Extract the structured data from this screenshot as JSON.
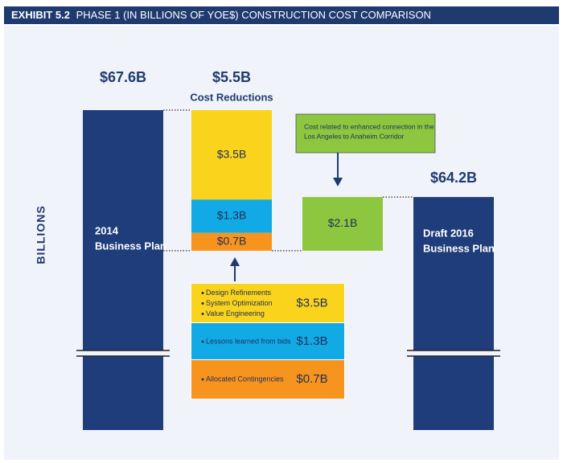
{
  "chart_data": {
    "type": "waterfall",
    "title": "EXHIBIT 5.2",
    "subtitle": "PHASE 1 (IN BILLIONS OF YOE$) CONSTRUCTION COST COMPARISON",
    "y_label": "BILLIONS",
    "start": {
      "name_lines": [
        "2014",
        "Business Plan"
      ],
      "value": 67.6,
      "value_label": "$67.6B",
      "color": "#1f3d7a"
    },
    "reductions": {
      "name": "Cost Reductions",
      "total": 5.5,
      "total_label": "$5.5B",
      "segments": [
        {
          "items": [
            "Design Refinements",
            "System Optimization",
            "Value Engineering"
          ],
          "value": 3.5,
          "value_label": "$3.5B",
          "color": "#f9d31c"
        },
        {
          "items": [
            "Lessons learned from bids"
          ],
          "value": 1.3,
          "value_label": "$1.3B",
          "color": "#12aae4"
        },
        {
          "items": [
            "Allocated Contingencies"
          ],
          "value": 0.7,
          "value_label": "$0.7B",
          "color": "#f7941e"
        }
      ]
    },
    "addition": {
      "value": 2.1,
      "value_label": "$2.1B",
      "color": "#8dc63f",
      "note_lines": [
        "Cost related to enhanced connection in the",
        "Los Angeles to Anaheim Corridor"
      ]
    },
    "end": {
      "name_lines": [
        "Draft 2016",
        "Business Plan"
      ],
      "value": 64.2,
      "value_label": "$64.2B",
      "color": "#1f3d7a"
    }
  }
}
